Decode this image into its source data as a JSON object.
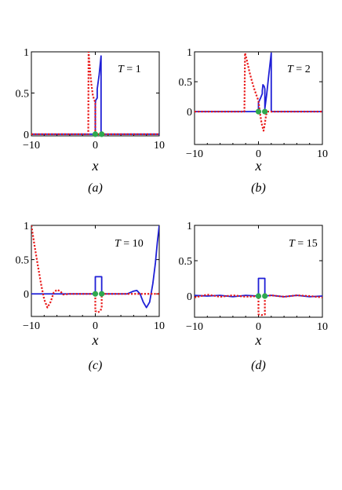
{
  "chart_data": [
    {
      "type": "line",
      "panel_label": "(a)",
      "annotation": {
        "var": "T",
        "eq": " = 1"
      },
      "xlabel": "x",
      "xlim": [
        -10,
        10
      ],
      "ylim": [
        -0.02,
        1.0
      ],
      "xticks": [
        -10,
        0,
        10
      ],
      "yticks": [
        0,
        0.5,
        1
      ],
      "ytick_labels": [
        "0",
        "0.5",
        "1"
      ],
      "series": [
        {
          "style": "solid",
          "color": "#1f1fd6",
          "x": [
            -10,
            0,
            0,
            0.05,
            0.3,
            0.3,
            0.6,
            0.9,
            0.9,
            1.0,
            1.0,
            10
          ],
          "y": [
            0,
            0,
            0.37,
            0.41,
            0.44,
            0.55,
            0.72,
            0.95,
            0.02,
            0.0,
            0,
            0
          ]
        },
        {
          "style": "dotted",
          "color": "#e81818",
          "x": [
            -10,
            -1.1,
            -1.05,
            -0.95,
            -0.8,
            -0.6,
            -0.4,
            -0.2,
            0,
            0,
            0.3,
            0.6,
            1.0,
            10
          ],
          "y": [
            0,
            0,
            1.0,
            0.9,
            0.75,
            0.6,
            0.48,
            0.42,
            0.39,
            0.0,
            0.0,
            0.0,
            0.0,
            0
          ]
        }
      ],
      "markers": {
        "color": "#2ea84f",
        "x": [
          0,
          1
        ],
        "y": [
          0,
          0
        ]
      }
    },
    {
      "type": "line",
      "panel_label": "(b)",
      "annotation": {
        "var": "T",
        "eq": " = 2"
      },
      "xlabel": "x",
      "xlim": [
        -10,
        10
      ],
      "ylim": [
        -0.55,
        1.0
      ],
      "xticks": [
        -10,
        0,
        10
      ],
      "yticks": [
        0,
        0.5,
        1
      ],
      "ytick_labels": [
        "0",
        "0.5",
        "1"
      ],
      "series": [
        {
          "style": "solid",
          "color": "#1f1fd6",
          "x": [
            -10,
            0,
            0,
            0.3,
            0.6,
            0.6,
            0.7,
            0.9,
            1.0,
            1.0,
            1.3,
            1.6,
            2.0,
            2.0,
            10
          ],
          "y": [
            0,
            0,
            0.15,
            0.22,
            0.3,
            0.35,
            0.45,
            0.42,
            0.38,
            0.05,
            0.3,
            0.6,
            0.98,
            0,
            0
          ]
        },
        {
          "style": "dotted",
          "color": "#e81818",
          "x": [
            -10,
            -2.2,
            -2.1,
            -1.8,
            -1.4,
            -1.0,
            -0.6,
            -0.2,
            0,
            0.2,
            0.5,
            0.8,
            1.0,
            1.2,
            1.5,
            10
          ],
          "y": [
            0,
            0,
            0.98,
            0.85,
            0.66,
            0.5,
            0.36,
            0.24,
            0.18,
            0.0,
            -0.2,
            -0.32,
            -0.2,
            -0.05,
            0.0,
            0
          ]
        }
      ],
      "markers": {
        "color": "#2ea84f",
        "x": [
          0,
          1
        ],
        "y": [
          0,
          0
        ]
      }
    },
    {
      "type": "line",
      "panel_label": "(c)",
      "annotation": {
        "var": "T",
        "eq": " = 10"
      },
      "xlabel": "x",
      "xlim": [
        -10,
        10
      ],
      "ylim": [
        -0.33,
        1.0
      ],
      "xticks": [
        -10,
        0,
        10
      ],
      "yticks": [
        0,
        0.5,
        1
      ],
      "ytick_labels": [
        "0",
        "0.5",
        "1"
      ],
      "series": [
        {
          "style": "solid",
          "color": "#1f1fd6",
          "x": [
            -10,
            0,
            0,
            1.0,
            1.0,
            5,
            5.5,
            6,
            6.5,
            7,
            7.5,
            8,
            8.5,
            9,
            9.4,
            9.7,
            10
          ],
          "y": [
            0,
            0,
            0.25,
            0.25,
            0,
            0,
            0.02,
            0.04,
            0.05,
            0.0,
            -0.12,
            -0.2,
            -0.12,
            0.15,
            0.45,
            0.75,
            1.0
          ]
        },
        {
          "style": "dotted",
          "color": "#e81818",
          "x": [
            -10,
            -9.5,
            -9,
            -8.5,
            -8,
            -7.5,
            -7,
            -6.5,
            -6,
            -5.5,
            -5,
            -4,
            -3,
            0,
            0,
            0.4,
            0.8,
            1.0,
            1.0,
            10
          ],
          "y": [
            1.0,
            0.7,
            0.42,
            0.15,
            -0.08,
            -0.2,
            -0.12,
            0.02,
            0.06,
            0.04,
            -0.01,
            0.0,
            0,
            0,
            -0.25,
            -0.27,
            -0.25,
            -0.2,
            0,
            0
          ]
        }
      ],
      "markers": {
        "color": "#2ea84f",
        "x": [
          0,
          1
        ],
        "y": [
          0,
          0
        ]
      }
    },
    {
      "type": "line",
      "panel_label": "(d)",
      "annotation": {
        "var": "T",
        "eq": " = 15"
      },
      "xlabel": "x",
      "xlim": [
        -10,
        10
      ],
      "ylim": [
        -0.3,
        1.0
      ],
      "xticks": [
        -10,
        0,
        10
      ],
      "yticks": [
        0,
        0.5,
        1
      ],
      "ytick_labels": [
        "0",
        "0.5",
        "1"
      ],
      "series": [
        {
          "style": "solid",
          "color": "#1f1fd6",
          "x": [
            -10,
            -8,
            -6,
            -4,
            -2,
            0,
            0,
            1.0,
            1.0,
            2,
            4,
            6,
            8,
            10
          ],
          "y": [
            0.01,
            0.0,
            0.01,
            -0.01,
            0.01,
            0,
            0.25,
            0.25,
            0,
            0.01,
            -0.01,
            0.01,
            -0.01,
            0.0
          ]
        },
        {
          "style": "dotted",
          "color": "#e81818",
          "x": [
            -10,
            -8,
            -6,
            -4,
            -2,
            0,
            0,
            0.5,
            1.0,
            1.0,
            2,
            4,
            6,
            8,
            10
          ],
          "y": [
            -0.02,
            0.02,
            -0.01,
            0.01,
            -0.01,
            0,
            -0.26,
            -0.27,
            -0.26,
            0,
            0.01,
            -0.01,
            0.01,
            0.0,
            -0.02
          ]
        }
      ],
      "markers": {
        "color": "#2ea84f",
        "x": [
          0,
          1
        ],
        "y": [
          0,
          0
        ]
      }
    }
  ]
}
